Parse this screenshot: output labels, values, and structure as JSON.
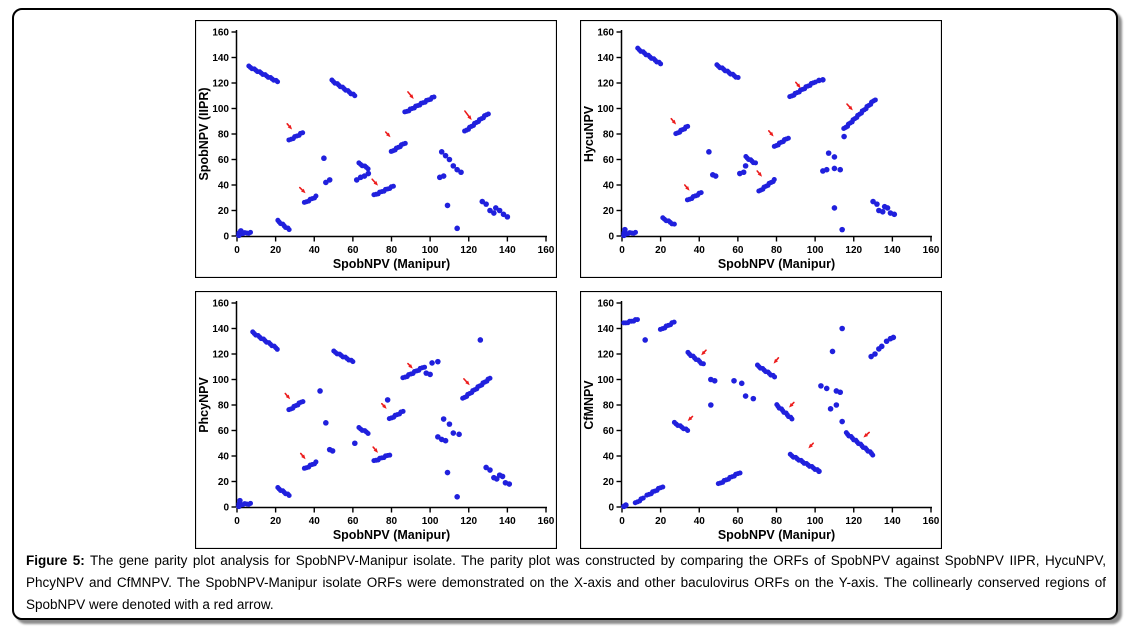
{
  "caption": {
    "label": "Figure 5:",
    "text": " The gene parity plot analysis for SpobNPV-Manipur isolate. The parity plot was constructed by comparing the ORFs of SpobNPV against SpobNPV IIPR, HycuNPV, PhcyNPV and CfMNPV. The SpobNPV-Manipur isolate ORFs were demonstrated on the X-axis and other baculovirus ORFs on the Y-axis. The collinearly conserved regions of SpobNPV were denoted with a red arrow."
  },
  "colors": {
    "dot": "#2020dd",
    "arrow": "#ec1c1c",
    "axis": "#000000",
    "frame": "#000000",
    "text": "#000000"
  },
  "chart_data": [
    {
      "type": "scatter",
      "id": "spobnpv-iipr",
      "ylabel": "SpobNPV (IIPR)",
      "xlabel": "SpobNPV (Manipur)",
      "xlim": [
        0,
        160
      ],
      "ylim": [
        0,
        160
      ],
      "grid": false,
      "xticks": [
        0,
        20,
        40,
        60,
        80,
        100,
        120,
        140,
        160
      ],
      "yticks": [
        0,
        20,
        40,
        60,
        80,
        100,
        120,
        140,
        160
      ],
      "runs": [
        [
          1,
          2,
          7,
          2.5
        ],
        [
          6,
          133,
          21,
          121
        ],
        [
          21,
          12,
          27,
          5
        ],
        [
          27,
          75,
          34,
          81
        ],
        [
          35,
          26,
          41,
          31
        ],
        [
          49,
          122,
          61,
          110
        ],
        [
          63,
          57,
          68,
          53
        ],
        [
          71,
          32,
          81,
          39
        ],
        [
          80,
          66,
          87,
          73
        ],
        [
          87,
          97,
          102,
          109
        ],
        [
          118,
          82,
          130,
          96
        ]
      ],
      "dots": [
        [
          1,
          0.5
        ],
        [
          2,
          4
        ],
        [
          45,
          61
        ],
        [
          46,
          42
        ],
        [
          48,
          44
        ],
        [
          62,
          44
        ],
        [
          64,
          46
        ],
        [
          66,
          47
        ],
        [
          68,
          49
        ],
        [
          105,
          46
        ],
        [
          107,
          47
        ],
        [
          106,
          66
        ],
        [
          108,
          63
        ],
        [
          110,
          60
        ],
        [
          112,
          55
        ],
        [
          114,
          52
        ],
        [
          116,
          50
        ],
        [
          109,
          24
        ],
        [
          114,
          6
        ],
        [
          127,
          27
        ],
        [
          129,
          25
        ],
        [
          131,
          20
        ],
        [
          133,
          18
        ],
        [
          134,
          22
        ],
        [
          136,
          20
        ],
        [
          138,
          17
        ],
        [
          140,
          15
        ]
      ],
      "arrows": [
        [
          26,
          88,
          28.5,
          83.5
        ],
        [
          32.5,
          38,
          35.5,
          33.5
        ],
        [
          70,
          44.5,
          73,
          39.5
        ],
        [
          77,
          81.5,
          79.5,
          77.5
        ],
        [
          88.5,
          113,
          91.5,
          107.5
        ],
        [
          118,
          98,
          121.5,
          91
        ]
      ]
    },
    {
      "type": "scatter",
      "id": "hycunpv",
      "ylabel": "HycuNPV",
      "xlabel": "SpobNPV (Manipur)",
      "xlim": [
        0,
        160
      ],
      "ylim": [
        0,
        160
      ],
      "grid": false,
      "xticks": [
        0,
        20,
        40,
        60,
        80,
        100,
        120,
        140,
        160
      ],
      "yticks": [
        0,
        20,
        40,
        60,
        80,
        100,
        120,
        140,
        160
      ],
      "runs": [
        [
          1,
          2,
          7,
          2.5
        ],
        [
          8,
          147,
          20,
          135
        ],
        [
          21,
          14,
          27,
          9
        ],
        [
          28,
          80,
          34,
          86
        ],
        [
          34,
          28,
          41,
          34
        ],
        [
          49,
          134,
          60,
          124
        ],
        [
          64,
          62,
          69,
          57
        ],
        [
          71,
          35,
          79,
          44
        ],
        [
          79,
          70,
          86,
          77
        ],
        [
          87,
          109,
          100,
          121
        ],
        [
          115,
          84,
          131,
          107
        ]
      ],
      "dots": [
        [
          1,
          0.5
        ],
        [
          1.5,
          5
        ],
        [
          45,
          66
        ],
        [
          47,
          48
        ],
        [
          48.5,
          47
        ],
        [
          61,
          49
        ],
        [
          63,
          50
        ],
        [
          64,
          55
        ],
        [
          102,
          122
        ],
        [
          104,
          122.5
        ],
        [
          104,
          51
        ],
        [
          106,
          52
        ],
        [
          107,
          65
        ],
        [
          110,
          62
        ],
        [
          110,
          53
        ],
        [
          113,
          52
        ],
        [
          115,
          78
        ],
        [
          110,
          22
        ],
        [
          114,
          5
        ],
        [
          130,
          27
        ],
        [
          132,
          25
        ],
        [
          133,
          20
        ],
        [
          135,
          19
        ],
        [
          136,
          23
        ],
        [
          137.5,
          22
        ],
        [
          139,
          18
        ],
        [
          141,
          17
        ]
      ],
      "arrows": [
        [
          25.5,
          92,
          28,
          87.5
        ],
        [
          32.5,
          40,
          35,
          35.5
        ],
        [
          70,
          51,
          72.5,
          46.5
        ],
        [
          76,
          82.5,
          78.5,
          78
        ],
        [
          90,
          120.5,
          92.5,
          116
        ],
        [
          116.5,
          103.5,
          119.5,
          98.5
        ]
      ]
    },
    {
      "type": "scatter",
      "id": "phcynpv",
      "ylabel": "PhcyNPV",
      "xlabel": "SpobNPV (Manipur)",
      "xlim": [
        0,
        160
      ],
      "ylim": [
        0,
        160
      ],
      "grid": false,
      "xticks": [
        0,
        20,
        40,
        60,
        80,
        100,
        120,
        140,
        160
      ],
      "yticks": [
        0,
        20,
        40,
        60,
        80,
        100,
        120,
        140,
        160
      ],
      "runs": [
        [
          1,
          2,
          7,
          2.5
        ],
        [
          8,
          137,
          21,
          124
        ],
        [
          21,
          15,
          27,
          9
        ],
        [
          27,
          76,
          34,
          83
        ],
        [
          35,
          30,
          41,
          35
        ],
        [
          50,
          122,
          60,
          114
        ],
        [
          63,
          62,
          68,
          58
        ],
        [
          71,
          36,
          79,
          41
        ],
        [
          79,
          69,
          86,
          75
        ],
        [
          86,
          101,
          97,
          110
        ],
        [
          117,
          85,
          131,
          101
        ]
      ],
      "dots": [
        [
          1,
          0.5
        ],
        [
          1.5,
          5
        ],
        [
          43,
          91
        ],
        [
          46,
          66
        ],
        [
          48,
          45
        ],
        [
          49.5,
          44
        ],
        [
          61,
          50
        ],
        [
          78,
          84
        ],
        [
          98,
          105
        ],
        [
          100,
          104
        ],
        [
          101,
          113
        ],
        [
          104,
          114
        ],
        [
          104,
          55
        ],
        [
          106,
          53
        ],
        [
          108,
          52
        ],
        [
          107,
          69
        ],
        [
          110,
          65
        ],
        [
          112,
          58
        ],
        [
          115,
          57
        ],
        [
          109,
          27
        ],
        [
          114,
          8
        ],
        [
          126,
          131
        ],
        [
          129,
          31
        ],
        [
          131,
          29
        ],
        [
          133,
          23
        ],
        [
          134.5,
          22
        ],
        [
          136,
          25
        ],
        [
          137.5,
          24
        ],
        [
          139,
          19
        ],
        [
          141,
          18
        ]
      ],
      "arrows": [
        [
          25,
          89,
          27.5,
          84.5
        ],
        [
          33,
          42,
          35.5,
          37.5
        ],
        [
          70.5,
          47,
          73,
          42.5
        ],
        [
          75,
          81,
          77.5,
          77
        ],
        [
          88.5,
          112.5,
          91,
          108.5
        ],
        [
          117.5,
          100.5,
          120.5,
          95.5
        ]
      ]
    },
    {
      "type": "scatter",
      "id": "cfmnpv",
      "ylabel": "CfMNPV",
      "xlabel": "SpobNPV (Manipur)",
      "xlim": [
        0,
        160
      ],
      "ylim": [
        0,
        160
      ],
      "grid": false,
      "xticks": [
        0,
        20,
        40,
        60,
        80,
        100,
        120,
        140,
        160
      ],
      "yticks": [
        0,
        20,
        40,
        60,
        80,
        100,
        120,
        140,
        160
      ],
      "runs": [
        [
          1,
          144,
          8,
          147
        ],
        [
          7,
          3,
          11,
          7
        ],
        [
          13,
          9,
          21,
          16
        ],
        [
          20,
          139,
          27,
          145
        ],
        [
          27,
          66,
          34,
          60
        ],
        [
          34,
          121,
          42,
          112
        ],
        [
          50,
          18,
          61,
          27
        ],
        [
          87,
          41,
          101,
          29
        ],
        [
          70,
          111,
          79,
          102
        ],
        [
          80,
          80,
          88,
          69
        ],
        [
          116,
          58,
          130,
          41
        ]
      ],
      "dots": [
        [
          1,
          0.5
        ],
        [
          2,
          1.5
        ],
        [
          12,
          131
        ],
        [
          46,
          100
        ],
        [
          48,
          99
        ],
        [
          46,
          80
        ],
        [
          58,
          99
        ],
        [
          62,
          97
        ],
        [
          64,
          87
        ],
        [
          68,
          85
        ],
        [
          102,
          28
        ],
        [
          103,
          95
        ],
        [
          106,
          93
        ],
        [
          109,
          122
        ],
        [
          108,
          77
        ],
        [
          111,
          80
        ],
        [
          111,
          91
        ],
        [
          113,
          90
        ],
        [
          114,
          140
        ],
        [
          114,
          67
        ],
        [
          129,
          118
        ],
        [
          131,
          120
        ],
        [
          133,
          124
        ],
        [
          134.5,
          126
        ],
        [
          137,
          130
        ],
        [
          139,
          132
        ],
        [
          140.5,
          133
        ]
      ],
      "arrows": [
        [
          36.5,
          71,
          34,
          67.5
        ],
        [
          43.5,
          123,
          41,
          119
        ],
        [
          81,
          117,
          78.5,
          112.5
        ],
        [
          89,
          82,
          86.5,
          78
        ],
        [
          99,
          50,
          96.5,
          46
        ],
        [
          128,
          58.5,
          125,
          54.5
        ]
      ]
    }
  ]
}
